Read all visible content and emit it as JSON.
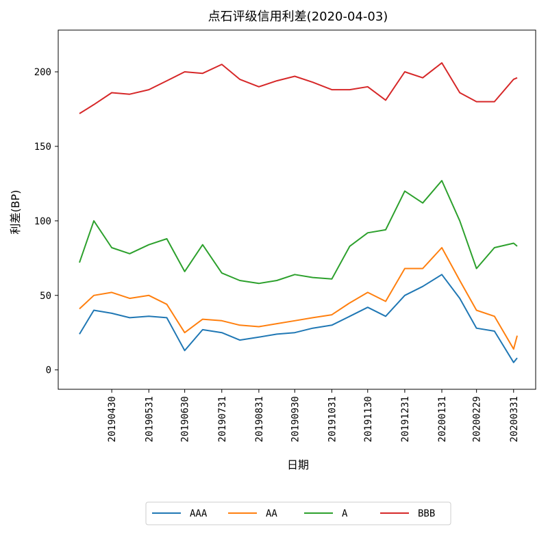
{
  "chart_data": {
    "type": "line",
    "title": "点石评级信用利差(2020-04-03)",
    "xlabel": "日期",
    "ylabel": "利差(BP)",
    "ylim": [
      -13,
      228
    ],
    "yticks": [
      0,
      50,
      100,
      150,
      200
    ],
    "xticks": [
      "20190430",
      "20190531",
      "20190630",
      "20190731",
      "20190831",
      "20190930",
      "20191031",
      "20191130",
      "20191231",
      "20200131",
      "20200229",
      "20200331"
    ],
    "legend_position": "bottom-center",
    "x": [
      "20190403",
      "20190415",
      "20190430",
      "20190515",
      "20190531",
      "20190615",
      "20190630",
      "20190715",
      "20190731",
      "20190815",
      "20190831",
      "20190915",
      "20190930",
      "20191015",
      "20191031",
      "20191115",
      "20191130",
      "20191215",
      "20191231",
      "20200115",
      "20200131",
      "20200215",
      "20200229",
      "20200315",
      "20200331",
      "20200403"
    ],
    "series": [
      {
        "name": "AAA",
        "color": "#1f77b4",
        "values": [
          24,
          40,
          38,
          35,
          36,
          35,
          13,
          27,
          25,
          20,
          22,
          24,
          25,
          28,
          30,
          36,
          42,
          36,
          50,
          56,
          64,
          48,
          28,
          26,
          5,
          8
        ]
      },
      {
        "name": "AA",
        "color": "#ff7f0e",
        "values": [
          41,
          50,
          52,
          48,
          50,
          44,
          25,
          34,
          33,
          30,
          29,
          31,
          33,
          35,
          37,
          45,
          52,
          46,
          68,
          68,
          82,
          60,
          40,
          36,
          14,
          23
        ]
      },
      {
        "name": "A",
        "color": "#2ca02c",
        "values": [
          72,
          100,
          82,
          78,
          84,
          88,
          66,
          84,
          65,
          60,
          58,
          60,
          64,
          62,
          61,
          83,
          92,
          94,
          120,
          112,
          127,
          100,
          68,
          82,
          85,
          83
        ]
      },
      {
        "name": "BBB",
        "color": "#d62728",
        "values": [
          172,
          178,
          186,
          185,
          188,
          194,
          200,
          199,
          205,
          195,
          190,
          194,
          197,
          193,
          188,
          188,
          190,
          181,
          200,
          196,
          206,
          186,
          180,
          180,
          195,
          196
        ]
      }
    ]
  }
}
